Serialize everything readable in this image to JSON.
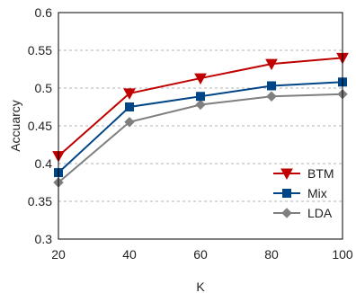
{
  "chart_data": {
    "type": "line",
    "x": [
      20,
      40,
      60,
      80,
      100
    ],
    "xlabel": "K",
    "ylabel": "Accuarcy",
    "xlim": [
      20,
      100
    ],
    "ylim": [
      0.3,
      0.6
    ],
    "xticks": [
      "20",
      "40",
      "60",
      "80",
      "100"
    ],
    "yticks": [
      "0.3",
      "0.35",
      "0.4",
      "0.45",
      "0.5",
      "0.55",
      "0.6"
    ],
    "grid": "horizontal dashed",
    "legend_position": "bottom-right",
    "series": [
      {
        "name": "BTM",
        "values": [
          0.41,
          0.493,
          0.513,
          0.532,
          0.54
        ],
        "color": "#c00000",
        "marker": "triangle-down"
      },
      {
        "name": "Mix",
        "values": [
          0.388,
          0.475,
          0.489,
          0.503,
          0.508
        ],
        "color": "#004586",
        "marker": "square"
      },
      {
        "name": "LDA",
        "values": [
          0.375,
          0.455,
          0.478,
          0.489,
          0.492
        ],
        "color": "#7f7f7f",
        "marker": "diamond"
      }
    ]
  }
}
